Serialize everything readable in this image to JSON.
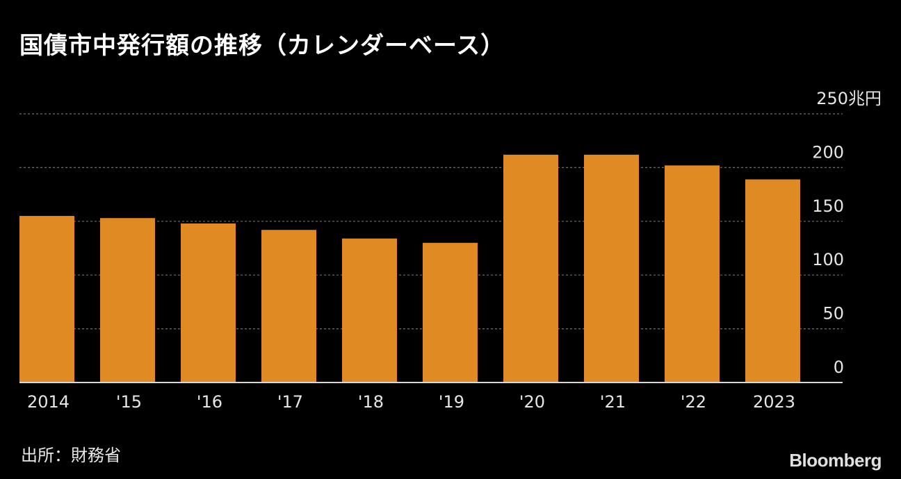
{
  "header": {
    "title": "国債市中発行額の推移（カレンダーベース）"
  },
  "footer": {
    "source": "出所：財務省",
    "brand": "Bloomberg"
  },
  "colors": {
    "background": "#000000",
    "bar": "#e08a24",
    "grid": "#6e6e6e",
    "axis": "#d8d8d8",
    "text": "#ffffff"
  },
  "chart_data": {
    "type": "bar",
    "title": "国債市中発行額の推移（カレンダーベース）",
    "categories": [
      "2014",
      "'15",
      "'16",
      "'17",
      "'18",
      "'19",
      "'20",
      "'21",
      "'22",
      "2023"
    ],
    "values": [
      155,
      153,
      148,
      142,
      134,
      130,
      212,
      212,
      202,
      189
    ],
    "ylim": [
      0,
      250
    ],
    "y_ticks": [
      "0",
      "50",
      "100",
      "150",
      "200",
      "250兆円"
    ],
    "y_tick_values": [
      0,
      50,
      100,
      150,
      200,
      250
    ],
    "y_axis_side": "right",
    "grid": true
  }
}
